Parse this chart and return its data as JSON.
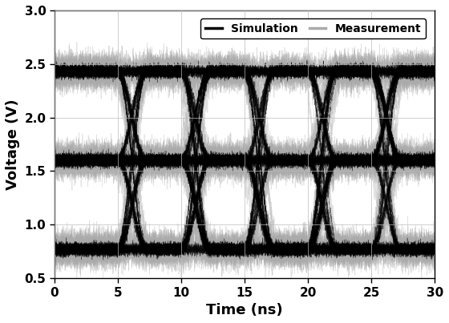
{
  "xlabel": "Time (ns)",
  "ylabel": "Voltage (V)",
  "xlim": [
    0,
    30
  ],
  "ylim": [
    0.5,
    3.0
  ],
  "xticks": [
    0,
    5,
    10,
    15,
    20,
    25,
    30
  ],
  "yticks": [
    0.5,
    1.0,
    1.5,
    2.0,
    2.5,
    3.0
  ],
  "sim_color": "#000000",
  "meas_color": "#aaaaaa",
  "legend_labels": [
    "Simulation",
    "Measurement"
  ],
  "bit_period": 5.0,
  "v_levels": [
    0.77,
    1.6,
    2.43
  ],
  "v_high": 2.43,
  "v_low": 0.77,
  "v_mid": 1.6,
  "noise_sim": 0.025,
  "noise_meas": 0.07,
  "jitter_sim": 0.08,
  "jitter_meas": 0.25,
  "n_traces_sim": 80,
  "n_traces_meas": 60,
  "lw_sim": 0.4,
  "lw_meas": 0.5,
  "alpha_sim": 0.55,
  "alpha_meas": 0.35,
  "background_color": "#ffffff",
  "grid_color": "#bbbbbb",
  "figsize": [
    5.6,
    4.03
  ],
  "dpi": 100
}
